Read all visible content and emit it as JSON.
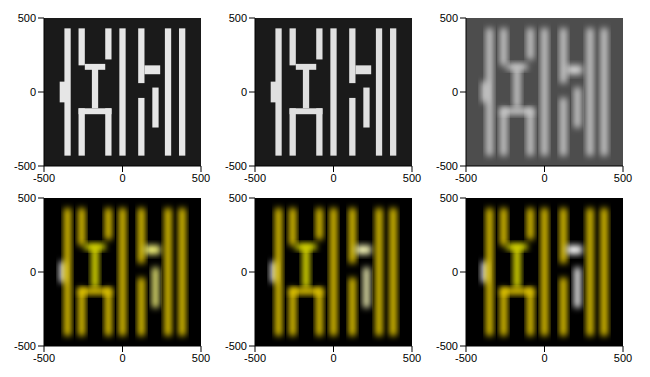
{
  "chart_data": [
    {
      "type": "heatmap",
      "color": "gray",
      "xlim": [
        -500,
        500
      ],
      "ylim": [
        -500,
        500
      ],
      "xticks": [
        -500,
        0,
        500
      ],
      "yticks": [
        -500,
        0,
        500
      ],
      "background": 0.1,
      "cells": [
        [
          -400,
          -360,
          -70,
          70,
          0.9
        ],
        [
          -370,
          -330,
          -430,
          430,
          0.9
        ],
        [
          -280,
          -240,
          180,
          430,
          0.9
        ],
        [
          -110,
          -70,
          220,
          430,
          0.9
        ],
        [
          -240,
          -110,
          150,
          190,
          0.9
        ],
        [
          -195,
          -155,
          -110,
          170,
          0.9
        ],
        [
          -280,
          -70,
          -150,
          -110,
          0.9
        ],
        [
          -280,
          -240,
          -430,
          -110,
          0.9
        ],
        [
          -110,
          -70,
          -430,
          -110,
          0.9
        ],
        [
          -20,
          20,
          -430,
          430,
          0.9
        ],
        [
          100,
          140,
          60,
          430,
          0.9
        ],
        [
          140,
          240,
          120,
          180,
          0.9
        ],
        [
          100,
          140,
          -430,
          -40,
          0.9
        ],
        [
          190,
          230,
          -240,
          30,
          0.9
        ],
        [
          270,
          310,
          -430,
          430,
          0.9
        ],
        [
          360,
          400,
          -430,
          430,
          0.9
        ]
      ]
    },
    {
      "type": "heatmap",
      "color": "gray",
      "xlim": [
        -500,
        500
      ],
      "ylim": [
        -500,
        500
      ],
      "xticks": [
        -500,
        0,
        500
      ],
      "yticks": [
        -500,
        0,
        500
      ],
      "background": 0.1,
      "cells": [
        [
          -400,
          -360,
          -70,
          70,
          0.88
        ],
        [
          -370,
          -330,
          -430,
          430,
          0.88
        ],
        [
          -280,
          -240,
          180,
          430,
          0.88
        ],
        [
          -110,
          -70,
          220,
          430,
          0.88
        ],
        [
          -240,
          -110,
          150,
          190,
          0.88
        ],
        [
          -195,
          -155,
          -110,
          170,
          0.88
        ],
        [
          -280,
          -70,
          -150,
          -110,
          0.88
        ],
        [
          -280,
          -240,
          -430,
          -110,
          0.88
        ],
        [
          -110,
          -70,
          -430,
          -110,
          0.88
        ],
        [
          -20,
          20,
          -430,
          430,
          0.88
        ],
        [
          100,
          140,
          60,
          430,
          0.88
        ],
        [
          140,
          240,
          120,
          180,
          0.88
        ],
        [
          100,
          140,
          -430,
          -40,
          0.88
        ],
        [
          190,
          230,
          -240,
          30,
          0.88
        ],
        [
          270,
          310,
          -430,
          430,
          0.88
        ],
        [
          360,
          400,
          -430,
          430,
          0.88
        ]
      ]
    },
    {
      "type": "heatmap",
      "color": "gray",
      "xlim": [
        -500,
        500
      ],
      "ylim": [
        -500,
        500
      ],
      "xticks": [
        -500,
        0,
        500
      ],
      "yticks": [
        -500,
        0,
        500
      ],
      "background": 0.3,
      "cells": [
        [
          -400,
          -360,
          -70,
          70,
          0.85
        ],
        [
          -370,
          -330,
          -430,
          430,
          0.85
        ],
        [
          -280,
          -240,
          180,
          430,
          0.85
        ],
        [
          -110,
          -70,
          220,
          430,
          0.85
        ],
        [
          -240,
          -110,
          150,
          190,
          0.85
        ],
        [
          -195,
          -155,
          -110,
          170,
          0.85
        ],
        [
          -280,
          -70,
          -150,
          -110,
          0.85
        ],
        [
          -280,
          -240,
          -430,
          -110,
          0.85
        ],
        [
          -110,
          -70,
          -430,
          -110,
          0.85
        ],
        [
          -20,
          20,
          -430,
          430,
          0.85
        ],
        [
          100,
          140,
          60,
          430,
          0.85
        ],
        [
          140,
          240,
          120,
          180,
          0.85
        ],
        [
          100,
          140,
          -430,
          -40,
          0.85
        ],
        [
          190,
          230,
          -240,
          30,
          0.85
        ],
        [
          270,
          310,
          -430,
          430,
          0.85
        ],
        [
          360,
          400,
          -430,
          430,
          0.85
        ]
      ]
    },
    {
      "type": "heatmap",
      "color": "hot",
      "xlim": [
        -500,
        500
      ],
      "ylim": [
        -500,
        500
      ],
      "xticks": [
        -500,
        0,
        500
      ],
      "yticks": [
        -500,
        0,
        500
      ],
      "background": 0,
      "cells": [
        [
          -400,
          -360,
          -70,
          70,
          1
        ],
        [
          -370,
          -330,
          -430,
          430,
          0.75
        ],
        [
          -280,
          -240,
          180,
          430,
          0.75
        ],
        [
          -110,
          -70,
          220,
          430,
          0.75
        ],
        [
          -240,
          -110,
          150,
          190,
          0.8
        ],
        [
          -195,
          -155,
          -110,
          170,
          0.8
        ],
        [
          -280,
          -70,
          -150,
          -110,
          0.75
        ],
        [
          -280,
          -240,
          -430,
          -110,
          0.75
        ],
        [
          -110,
          -70,
          -430,
          -110,
          0.75
        ],
        [
          -20,
          20,
          -430,
          430,
          0.75
        ],
        [
          100,
          140,
          60,
          430,
          0.75
        ],
        [
          140,
          240,
          120,
          180,
          0.9
        ],
        [
          100,
          140,
          -430,
          -40,
          0.75
        ],
        [
          190,
          230,
          -240,
          30,
          0.9
        ],
        [
          270,
          310,
          -430,
          430,
          0.75
        ],
        [
          360,
          400,
          -430,
          430,
          0.75
        ]
      ]
    },
    {
      "type": "heatmap",
      "color": "hot",
      "xlim": [
        -500,
        500
      ],
      "ylim": [
        -500,
        500
      ],
      "xticks": [
        -500,
        0,
        500
      ],
      "yticks": [
        -500,
        0,
        500
      ],
      "background": 0,
      "cells": [
        [
          -400,
          -360,
          -70,
          70,
          1
        ],
        [
          -370,
          -330,
          -430,
          430,
          0.75
        ],
        [
          -280,
          -240,
          180,
          430,
          0.75
        ],
        [
          -110,
          -70,
          220,
          430,
          0.75
        ],
        [
          -240,
          -110,
          150,
          190,
          0.8
        ],
        [
          -195,
          -155,
          -110,
          170,
          0.8
        ],
        [
          -280,
          -70,
          -150,
          -110,
          0.75
        ],
        [
          -280,
          -240,
          -430,
          -110,
          0.75
        ],
        [
          -110,
          -70,
          -430,
          -110,
          0.75
        ],
        [
          -20,
          20,
          -430,
          430,
          0.75
        ],
        [
          100,
          140,
          60,
          430,
          0.75
        ],
        [
          140,
          240,
          120,
          180,
          0.95
        ],
        [
          100,
          140,
          -430,
          -40,
          0.75
        ],
        [
          190,
          230,
          -240,
          30,
          0.95
        ],
        [
          270,
          310,
          -430,
          430,
          0.75
        ],
        [
          360,
          400,
          -430,
          430,
          0.75
        ]
      ]
    },
    {
      "type": "heatmap",
      "color": "hot",
      "xlim": [
        -500,
        500
      ],
      "ylim": [
        -500,
        500
      ],
      "xticks": [
        -500,
        0,
        500
      ],
      "yticks": [
        -500,
        0,
        500
      ],
      "background": 0,
      "cells": [
        [
          -400,
          -360,
          -70,
          70,
          1
        ],
        [
          -370,
          -330,
          -430,
          430,
          0.75
        ],
        [
          -280,
          -240,
          180,
          430,
          0.75
        ],
        [
          -110,
          -70,
          220,
          430,
          0.75
        ],
        [
          -240,
          -110,
          150,
          190,
          0.8
        ],
        [
          -195,
          -155,
          -110,
          170,
          0.8
        ],
        [
          -280,
          -70,
          -150,
          -110,
          0.75
        ],
        [
          -280,
          -240,
          -430,
          -110,
          0.75
        ],
        [
          -110,
          -70,
          -430,
          -110,
          0.75
        ],
        [
          -20,
          20,
          -430,
          430,
          0.75
        ],
        [
          100,
          140,
          60,
          430,
          0.75
        ],
        [
          140,
          240,
          120,
          180,
          1
        ],
        [
          100,
          140,
          -430,
          -40,
          0.75
        ],
        [
          190,
          230,
          -240,
          30,
          1
        ],
        [
          270,
          310,
          -430,
          430,
          0.75
        ],
        [
          360,
          400,
          -430,
          430,
          0.75
        ]
      ]
    }
  ]
}
